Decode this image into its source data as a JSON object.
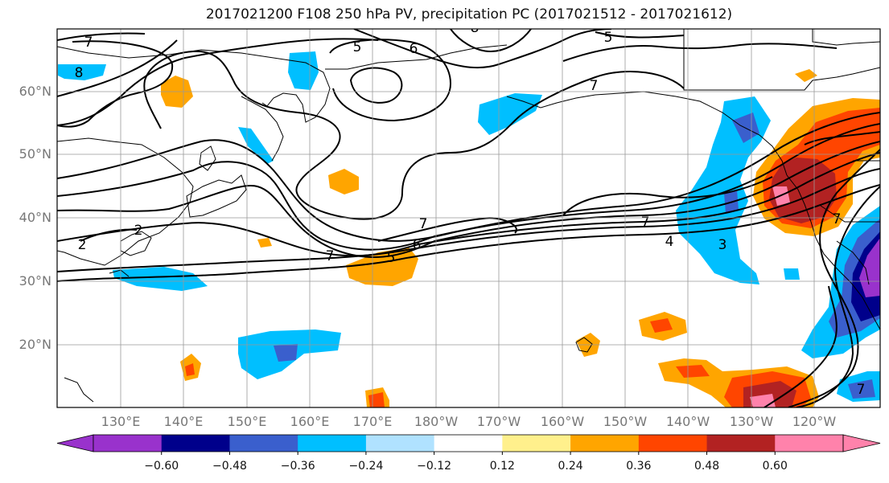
{
  "title": "2017021200 F108 250 hPa PV, precipitation PC (2017021512 - 2017021612)",
  "lat_labels": [
    "60°N",
    "50°N",
    "40°N",
    "30°N",
    "20°N"
  ],
  "lon_labels": [
    "130°E",
    "140°E",
    "150°E",
    "160°E",
    "170°E",
    "180°W",
    "170°W",
    "160°W",
    "150°W",
    "140°W",
    "130°W",
    "120°W"
  ],
  "contour_labels": [
    "7",
    "8",
    "5",
    "6",
    "8",
    "5",
    "7",
    "2",
    "2",
    "7",
    "6",
    "5",
    "7",
    "4",
    "3",
    "7",
    "7",
    "7"
  ],
  "colorbar": {
    "ticks": [
      "−0.60",
      "−0.48",
      "−0.36",
      "−0.24",
      "−0.12",
      "0.12",
      "0.24",
      "0.36",
      "0.48",
      "0.60"
    ],
    "colors": [
      "#9932cc",
      "#00008b",
      "#3a5fcd",
      "#00bfff",
      "#b0e2ff",
      "#ffffff",
      "#fff08c",
      "#ffa500",
      "#ff4500",
      "#b22222",
      "#ff82ab",
      "#ff82ab"
    ]
  },
  "legend_colors": {
    "neg_strong": "#9932cc",
    "neg_very": "#00008b",
    "neg_mid": "#3a5fcd",
    "neg": "#00bfff",
    "neg_light": "#b0e2ff",
    "zero": "#ffffff",
    "pos_light": "#fff08c",
    "pos": "#ffa500",
    "pos_mid": "#ff4500",
    "pos_strong": "#b22222",
    "pos_max": "#ff82ab"
  }
}
